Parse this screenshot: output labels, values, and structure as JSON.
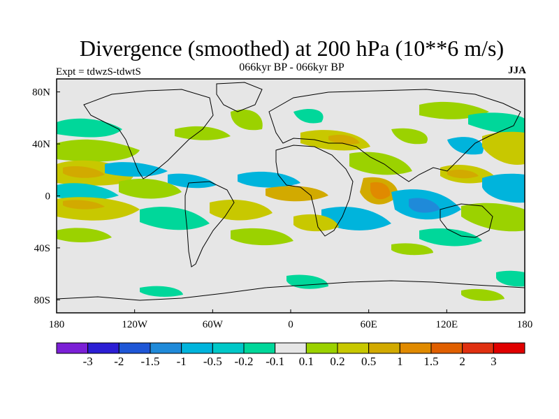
{
  "header": {
    "title": "Divergence (smoothed) at 200 hPa (10**6 m/s)",
    "subtitle": "066kyr BP - 066kyr BP",
    "left_label": "Expt = tdwzS-tdwtS",
    "right_label": "JJA"
  },
  "map": {
    "projection": "cylindrical-equidistant",
    "lon_range": [
      -180,
      180
    ],
    "lat_range": [
      -90,
      90
    ],
    "background_color": "#e6e6e6",
    "coastline_color": "#000000",
    "x_ticks": [
      {
        "label": "180",
        "lon": -180
      },
      {
        "label": "120W",
        "lon": -120
      },
      {
        "label": "60W",
        "lon": -60
      },
      {
        "label": "0",
        "lon": 0
      },
      {
        "label": "60E",
        "lon": 60
      },
      {
        "label": "120E",
        "lon": 120
      },
      {
        "label": "180",
        "lon": 180
      }
    ],
    "y_ticks": [
      {
        "label": "80N",
        "lat": 80
      },
      {
        "label": "40N",
        "lat": 40
      },
      {
        "label": "0",
        "lat": 0
      },
      {
        "label": "40S",
        "lat": -40
      },
      {
        "label": "80S",
        "lat": -80
      }
    ]
  },
  "colorbar": {
    "colors": [
      "#7b1fd6",
      "#2c1ed4",
      "#1e56d6",
      "#1f8ad9",
      "#00b4dc",
      "#00c8c8",
      "#00d79a",
      "#e6e6e6",
      "#9bd200",
      "#c8c800",
      "#d2aa00",
      "#e08a00",
      "#e05f00",
      "#e03010",
      "#e00000"
    ],
    "labels": [
      "-3",
      "-2",
      "-1.5",
      "-1",
      "-0.5",
      "-0.2",
      "-0.1",
      "0.1",
      "0.2",
      "0.5",
      "1",
      "1.5",
      "2",
      "3"
    ]
  }
}
